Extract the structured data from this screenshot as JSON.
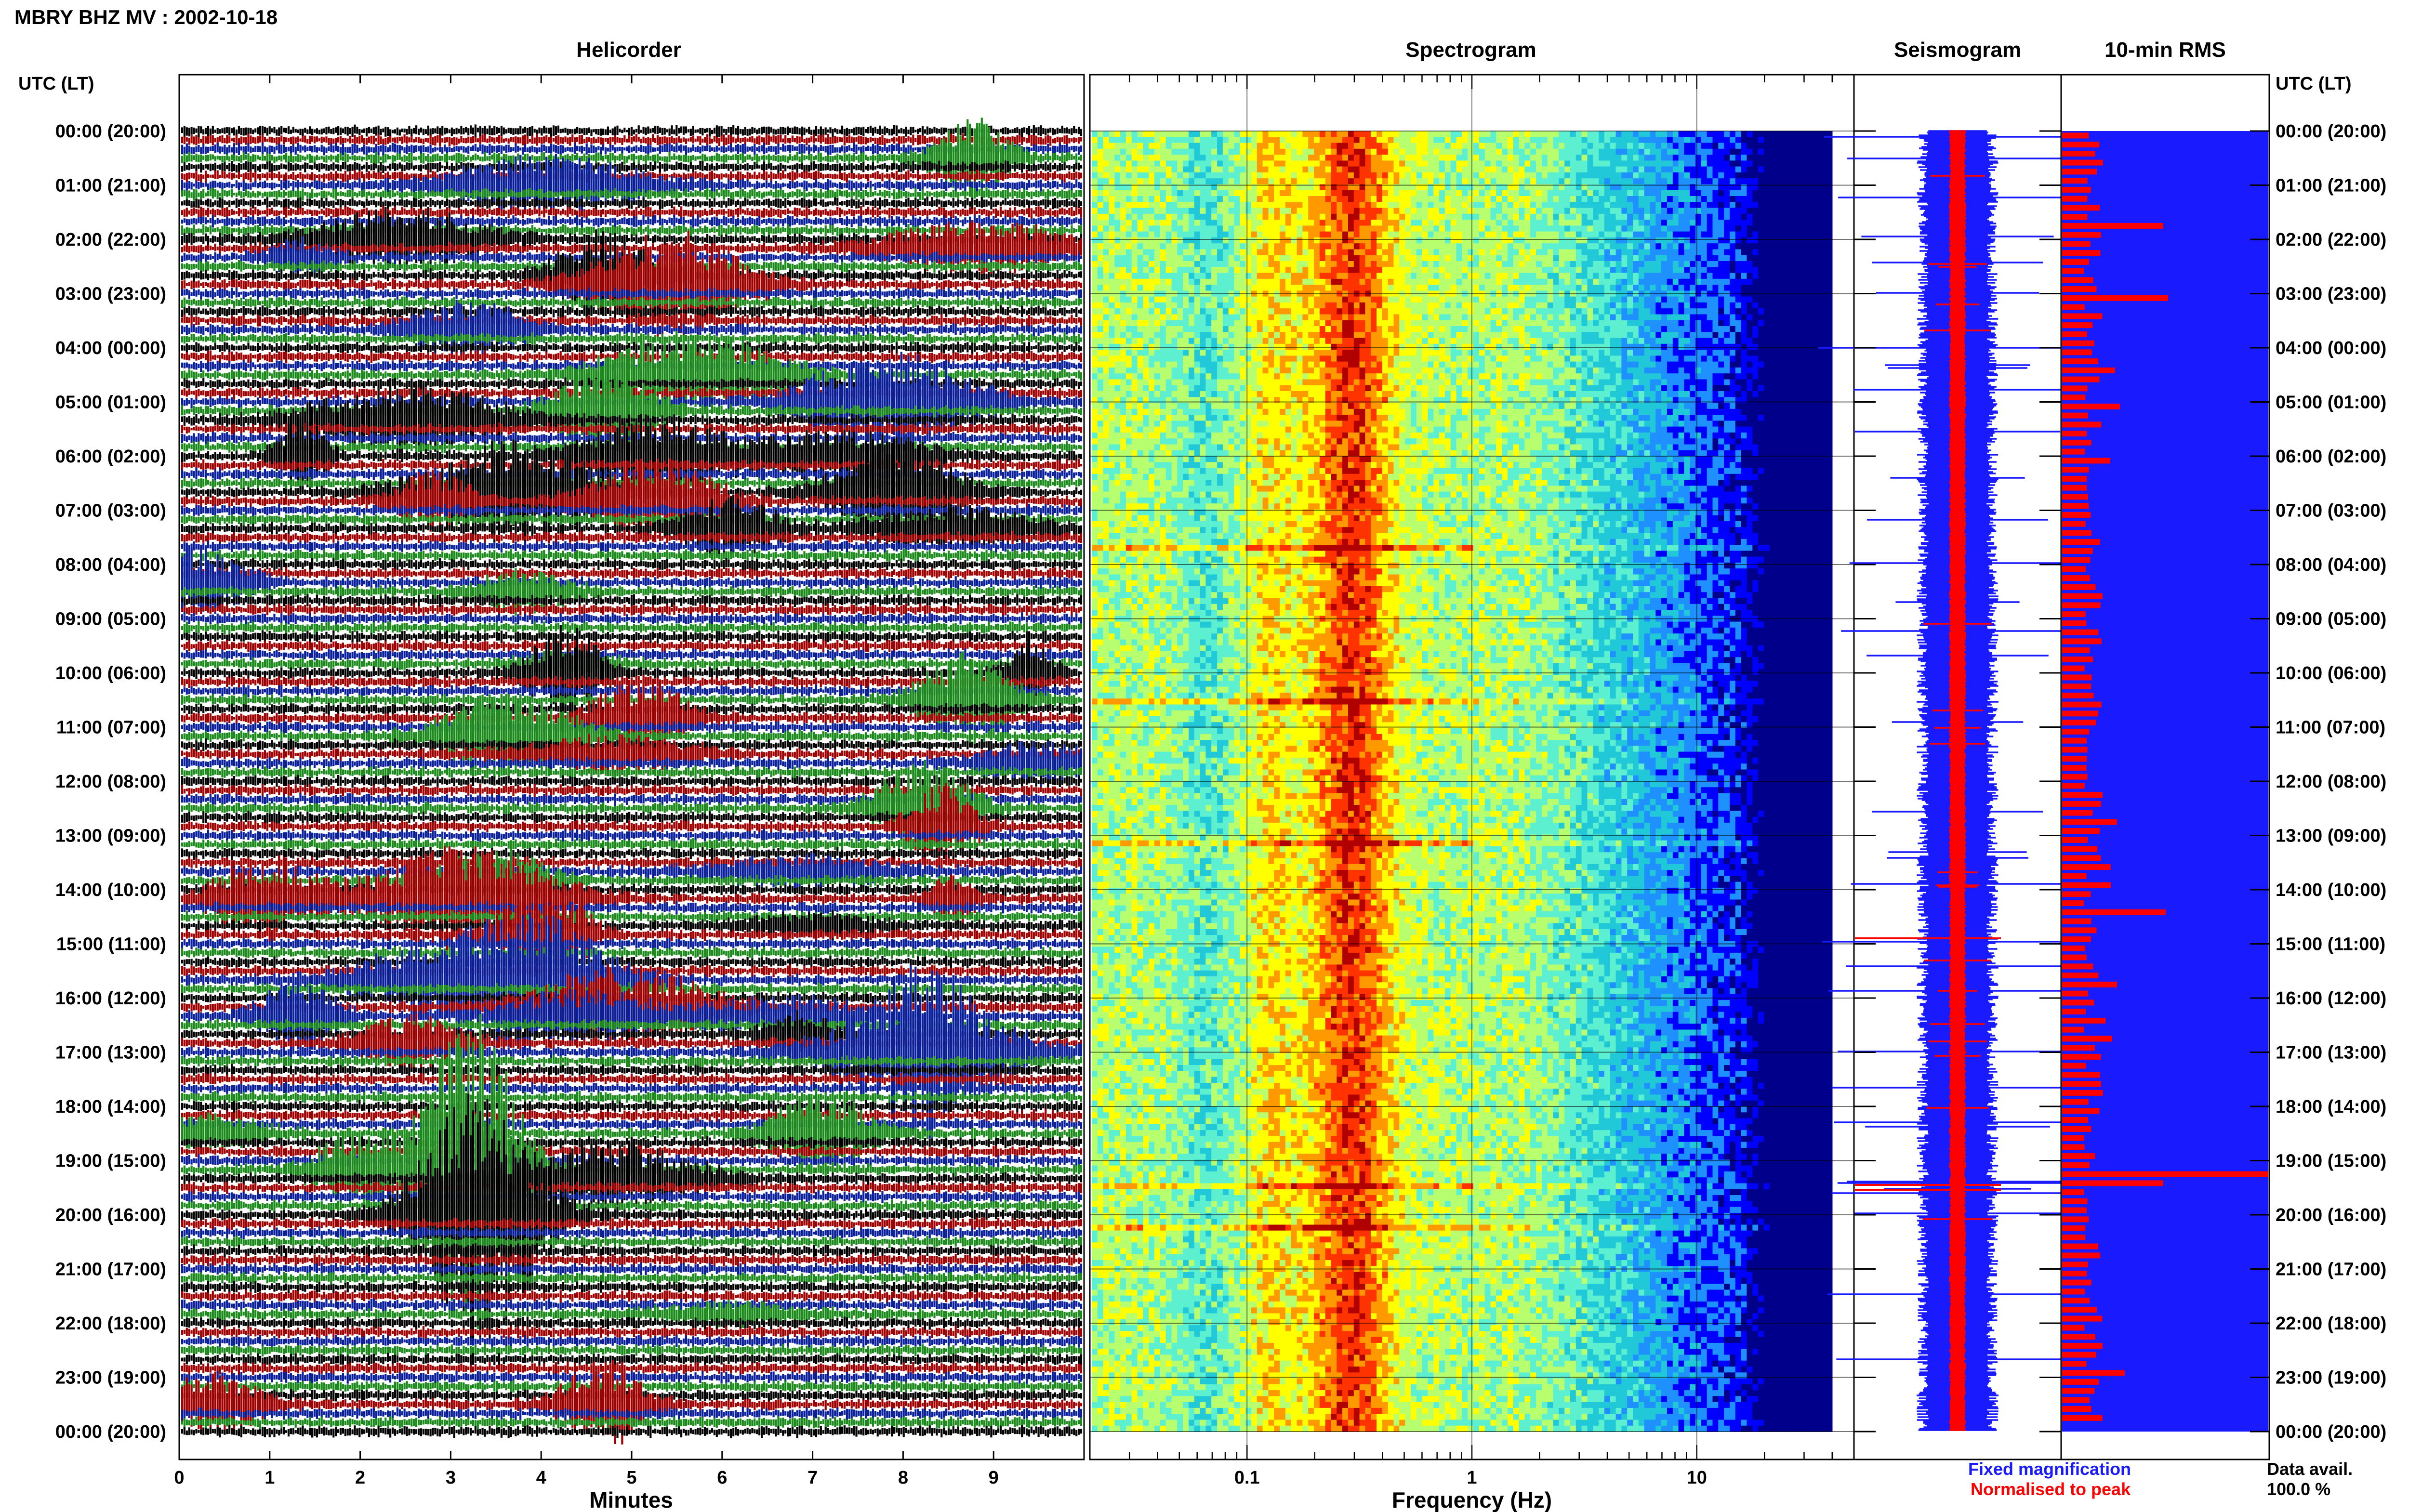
{
  "header": {
    "title": "MBRY BHZ MV : 2002-10-18"
  },
  "panels": {
    "helicorder": "Helicorder",
    "spectrogram": "Spectrogram",
    "seismogram": "Seismogram",
    "rms": "10-min RMS"
  },
  "axis_labels": {
    "left_header": "UTC (LT)",
    "right_header": "UTC (LT)",
    "helicorder_x": "Minutes",
    "spectrogram_x": "Frequency (Hz)"
  },
  "time_labels": [
    "00:00 (20:00)",
    "01:00 (21:00)",
    "02:00 (22:00)",
    "03:00 (23:00)",
    "04:00 (00:00)",
    "05:00 (01:00)",
    "06:00 (02:00)",
    "07:00 (03:00)",
    "08:00 (04:00)",
    "09:00 (05:00)",
    "10:00 (06:00)",
    "11:00 (07:00)",
    "12:00 (08:00)",
    "13:00 (09:00)",
    "14:00 (10:00)",
    "15:00 (11:00)",
    "16:00 (12:00)",
    "17:00 (13:00)",
    "18:00 (14:00)",
    "19:00 (15:00)",
    "20:00 (16:00)",
    "21:00 (17:00)",
    "22:00 (18:00)",
    "23:00 (19:00)",
    "00:00 (20:00)"
  ],
  "legend": {
    "fixed": "Fixed magnification",
    "normalised": "Normalised to peak",
    "fixed_color": "#1a1aff",
    "normalised_color": "#ff0000"
  },
  "availability": {
    "label": "Data avail.",
    "value": "100.0 %"
  },
  "chart_data": [
    {
      "type": "line",
      "panel": "helicorder",
      "title": "Helicorder",
      "xlabel": "Minutes",
      "x_ticks": [
        0,
        1,
        2,
        3,
        4,
        5,
        6,
        7,
        8,
        9
      ],
      "xlim": [
        0,
        10
      ],
      "trace_colors": [
        "#000000",
        "#a00000",
        "#0a1f9c",
        "#1a8a1a"
      ],
      "rows_per_hour": 6,
      "hours": 24
    },
    {
      "type": "heatmap",
      "panel": "spectrogram",
      "title": "Spectrogram",
      "xlabel": "Frequency (Hz)",
      "x_scale": "log",
      "x_ticks": [
        0.1,
        1,
        10
      ],
      "x_tick_labels": [
        "0.1",
        "1",
        "10"
      ],
      "xlim": [
        0.02,
        50
      ],
      "colormap": [
        "#00008b",
        "#0000ff",
        "#1e90ff",
        "#20c8d8",
        "#5cf0d0",
        "#b8ff70",
        "#ffff00",
        "#ff9900",
        "#ff3300",
        "#b00000"
      ]
    },
    {
      "type": "line",
      "panel": "seismogram",
      "title": "Seismogram",
      "series": [
        {
          "name": "Fixed magnification",
          "color": "#1a1aff"
        },
        {
          "name": "Normalised to peak",
          "color": "#ff0000"
        }
      ]
    },
    {
      "type": "bar",
      "panel": "rms",
      "title": "10-min RMS",
      "series": [
        {
          "name": "Fixed magnification",
          "color": "#1a1aff"
        },
        {
          "name": "Normalised to peak",
          "color": "#ff0000"
        }
      ],
      "orientation": "horizontal"
    }
  ]
}
